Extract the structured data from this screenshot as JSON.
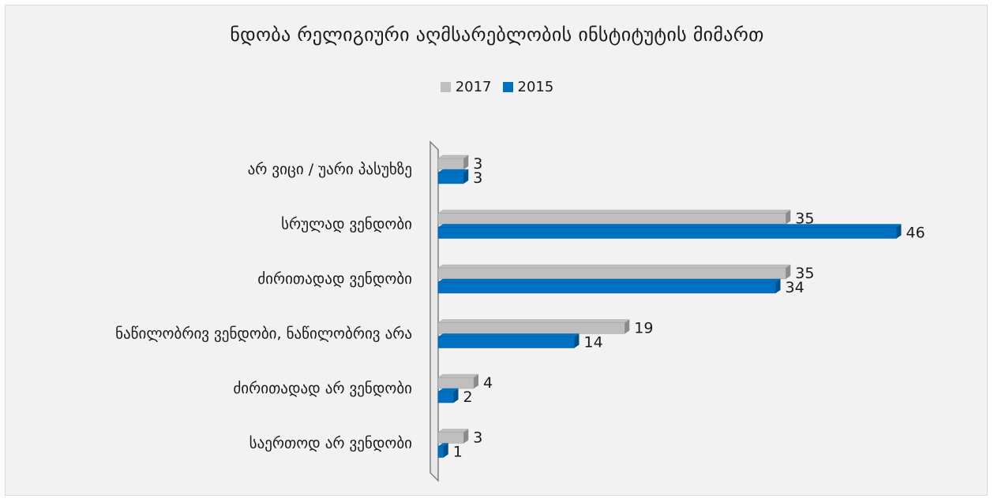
{
  "chart_data": {
    "type": "bar",
    "orientation": "horizontal",
    "title": "ნდობა  რელიგიური აღმსარებლობის ინსტიტუტის მიმართ",
    "categories": [
      "არ ვიცი / უარი პასუხზე",
      "სრულად ვენდობი",
      "ძირითადად ვენდობი",
      "ნაწილობრივ ვენდობი, ნაწილობრივ არა",
      "ძირითადად არ ვენდობი",
      "საერთოდ არ ვენდობი"
    ],
    "series": [
      {
        "name": "2017",
        "color": "#bfbfbf",
        "values": [
          3,
          35,
          35,
          19,
          4,
          3
        ]
      },
      {
        "name": "2015",
        "color": "#0070c0",
        "values": [
          3,
          46,
          34,
          14,
          2,
          1
        ]
      }
    ],
    "legend_position": "top",
    "grid": false,
    "style": "3d-bar"
  }
}
